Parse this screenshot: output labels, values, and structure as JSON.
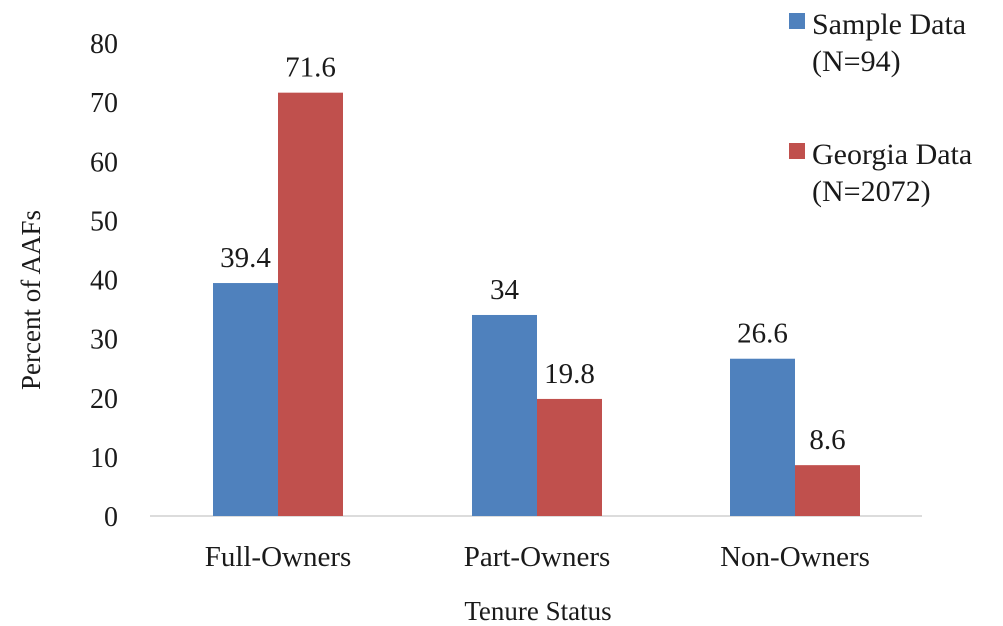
{
  "chart_data": {
    "type": "bar",
    "categories": [
      "Full-Owners",
      "Part-Owners",
      "Non-Owners"
    ],
    "series": [
      {
        "name_lines": [
          "Sample Data",
          "(N=94)"
        ],
        "color": "#4f81bd",
        "values": [
          39.4,
          34,
          26.6
        ],
        "labels": [
          "39.4",
          "34",
          "26.6"
        ]
      },
      {
        "name_lines": [
          "Georgia Data",
          "(N=2072)"
        ],
        "color": "#c0504d",
        "values": [
          71.6,
          19.8,
          8.6
        ],
        "labels": [
          "71.6",
          "19.8",
          "8.6"
        ]
      }
    ],
    "xlabel": "Tenure Status",
    "ylabel": "Percent of AAFs",
    "ylim": [
      0,
      80
    ],
    "yticks": [
      "0",
      "10",
      "20",
      "30",
      "40",
      "50",
      "60",
      "70",
      "80"
    ],
    "grid": false,
    "legend_position": "top-right"
  }
}
